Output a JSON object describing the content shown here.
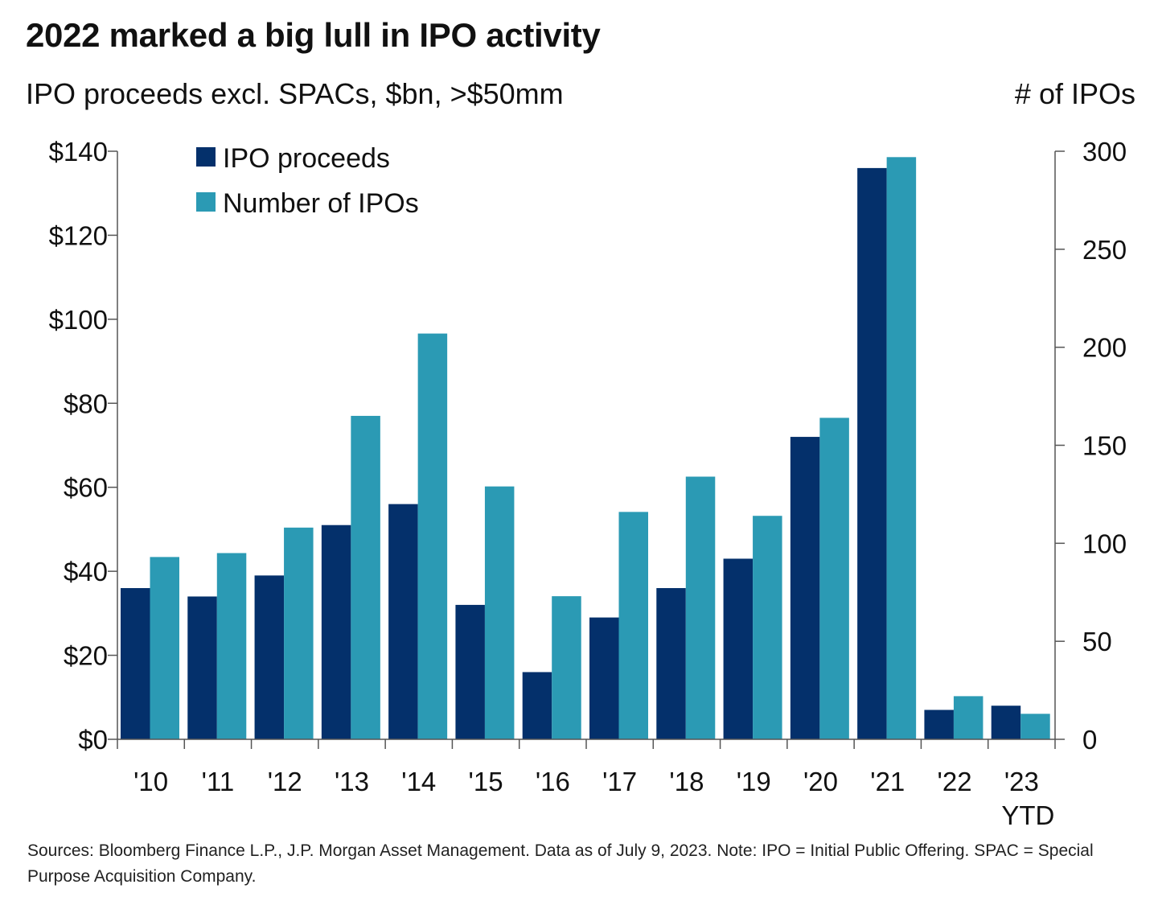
{
  "title": "2022 marked a big lull in IPO activity",
  "subtitle": "IPO proceeds excl. SPACs, $bn, >$50mm",
  "right_axis_title": "# of IPOs",
  "footnote": "Sources: Bloomberg Finance L.P., J.P. Morgan Asset Management. Data as of July 9, 2023. Note: IPO = Initial Public Offering. SPAC = Special Purpose Acquisition Company.",
  "colors": {
    "proceeds": "#04306b",
    "count": "#2b9ab4",
    "axis": "#555555"
  },
  "chart_data": {
    "type": "bar",
    "categories": [
      "'10",
      "'11",
      "'12",
      "'13",
      "'14",
      "'15",
      "'16",
      "'17",
      "'18",
      "'19",
      "'20",
      "'21",
      "'22",
      "'23\nYTD"
    ],
    "series": [
      {
        "name": "IPO proceeds",
        "axis": "left",
        "color": "#04306b",
        "values": [
          36,
          34,
          39,
          51,
          56,
          32,
          16,
          29,
          36,
          43,
          72,
          136,
          7,
          8
        ]
      },
      {
        "name": "Number of IPOs",
        "axis": "right",
        "color": "#2b9ab4",
        "values": [
          93,
          95,
          108,
          165,
          207,
          129,
          73,
          116,
          134,
          114,
          164,
          297,
          22,
          13
        ]
      }
    ],
    "y_left": {
      "min": 0,
      "max": 140,
      "ticks": [
        0,
        20,
        40,
        60,
        80,
        100,
        120,
        140
      ],
      "tick_labels": [
        "$0",
        "$20",
        "$40",
        "$60",
        "$80",
        "$100",
        "$120",
        "$140"
      ]
    },
    "y_right": {
      "label": "# of IPOs",
      "min": 0,
      "max": 300,
      "ticks": [
        0,
        50,
        100,
        150,
        200,
        250,
        300
      ],
      "tick_labels": [
        "0",
        "50",
        "100",
        "150",
        "200",
        "250",
        "300"
      ]
    },
    "grid": false,
    "legend": {
      "position": "top-left",
      "entries": [
        "IPO proceeds",
        "Number of IPOs"
      ]
    }
  }
}
